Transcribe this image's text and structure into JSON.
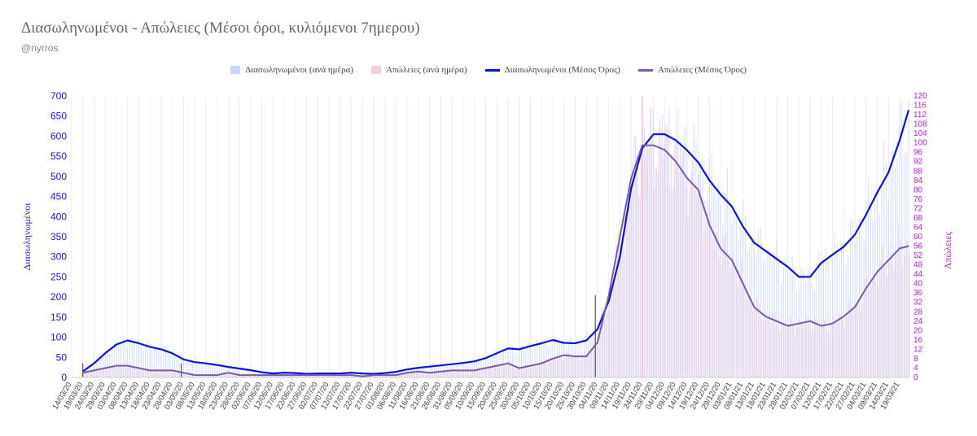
{
  "header": {
    "title": "Διασωληνωμένοι - Απώλειες (Μέσοι όροι, κυλιόμενοι 7ημερου)",
    "subtitle": "@nyrros"
  },
  "legend": [
    {
      "label": "Διασωληνωμένοι (ανά ημέρα)",
      "color": "#c9d7fa",
      "kind": "bar"
    },
    {
      "label": "Απώλειες (ανά ημέρα)",
      "color": "#f4cfe0",
      "kind": "bar"
    },
    {
      "label": "Διασωληνωμένοι (Μέσος Όρος)",
      "color": "#0a14e0",
      "kind": "line"
    },
    {
      "label": "Απώλειες (Μέσος Όρος)",
      "color": "#7a5aa8",
      "kind": "line"
    }
  ],
  "chart_data": {
    "type": "line",
    "title": "Διασωληνωμένοι - Απώλειες (Μέσοι όροι, κυλιόμενοι 7ημερου)",
    "ylabel": "Διασωληνωμένοι",
    "y2label": "Απώλειες",
    "ylim": [
      0,
      700
    ],
    "y2lim": [
      0,
      120
    ],
    "yticks": [
      0,
      50,
      100,
      150,
      200,
      250,
      300,
      350,
      400,
      450,
      500,
      550,
      600,
      650,
      700
    ],
    "y2ticks": [
      0,
      4,
      8,
      12,
      16,
      20,
      24,
      28,
      32,
      36,
      40,
      44,
      48,
      52,
      56,
      60,
      64,
      68,
      72,
      76,
      80,
      84,
      88,
      92,
      96,
      100,
      104,
      108,
      112,
      116,
      120
    ],
    "xticks": [
      "14/03/20",
      "19/03/20",
      "24/03/20",
      "29/03/20",
      "03/04/20",
      "08/04/20",
      "13/04/20",
      "18/04/20",
      "23/04/20",
      "28/04/20",
      "03/05/20",
      "08/05/20",
      "13/05/20",
      "18/05/20",
      "23/05/20",
      "28/05/20",
      "02/06/20",
      "07/06/20",
      "12/06/20",
      "17/06/20",
      "22/06/20",
      "27/06/20",
      "02/07/20",
      "07/07/20",
      "12/07/20",
      "17/07/20",
      "22/07/20",
      "27/07/20",
      "01/08/20",
      "06/08/20",
      "11/08/20",
      "16/08/20",
      "21/08/20",
      "26/08/20",
      "31/08/20",
      "05/09/20",
      "10/09/20",
      "15/09/20",
      "20/09/20",
      "25/09/20",
      "30/09/20",
      "05/10/20",
      "10/10/20",
      "15/10/20",
      "20/10/20",
      "25/10/20",
      "30/10/20",
      "04/11/20",
      "09/11/20",
      "14/11/20",
      "19/11/20",
      "24/11/20",
      "29/11/20",
      "04/12/20",
      "09/12/20",
      "14/12/20",
      "19/12/20",
      "24/12/20",
      "29/12/20",
      "03/01/21",
      "08/01/21",
      "13/01/21",
      "18/01/21",
      "23/01/21",
      "28/01/21",
      "02/02/21",
      "07/02/21",
      "12/02/21",
      "17/02/21",
      "22/02/21",
      "27/02/21",
      "04/03/21",
      "09/03/21",
      "14/03/21",
      "19/03/21"
    ],
    "x_start": "14/03/20",
    "x_end": "23/03/21",
    "grid": "vertical",
    "legend_position": "top",
    "series": [
      {
        "name": "Διασωληνωμένοι (Μέσος Όρος)",
        "axis": "left",
        "color": "#0a14e0",
        "points": [
          [
            "19/03/20",
            15
          ],
          [
            "24/03/20",
            35
          ],
          [
            "29/03/20",
            60
          ],
          [
            "03/04/20",
            82
          ],
          [
            "08/04/20",
            92
          ],
          [
            "13/04/20",
            85
          ],
          [
            "18/04/20",
            76
          ],
          [
            "23/04/20",
            70
          ],
          [
            "28/04/20",
            60
          ],
          [
            "03/05/20",
            45
          ],
          [
            "08/05/20",
            38
          ],
          [
            "13/05/20",
            35
          ],
          [
            "18/05/20",
            31
          ],
          [
            "23/05/20",
            26
          ],
          [
            "28/05/20",
            22
          ],
          [
            "02/06/20",
            18
          ],
          [
            "07/06/20",
            13
          ],
          [
            "12/06/20",
            10
          ],
          [
            "17/06/20",
            12
          ],
          [
            "22/06/20",
            11
          ],
          [
            "27/06/20",
            9
          ],
          [
            "02/07/20",
            10
          ],
          [
            "07/07/20",
            10
          ],
          [
            "12/07/20",
            10
          ],
          [
            "17/07/20",
            12
          ],
          [
            "22/07/20",
            10
          ],
          [
            "27/07/20",
            9
          ],
          [
            "01/08/20",
            11
          ],
          [
            "06/08/20",
            14
          ],
          [
            "11/08/20",
            20
          ],
          [
            "16/08/20",
            24
          ],
          [
            "21/08/20",
            27
          ],
          [
            "26/08/20",
            30
          ],
          [
            "31/08/20",
            33
          ],
          [
            "05/09/20",
            36
          ],
          [
            "10/09/20",
            40
          ],
          [
            "15/09/20",
            48
          ],
          [
            "20/09/20",
            60
          ],
          [
            "25/09/20",
            72
          ],
          [
            "30/09/20",
            70
          ],
          [
            "05/10/20",
            78
          ],
          [
            "10/10/20",
            85
          ],
          [
            "15/10/20",
            93
          ],
          [
            "20/10/20",
            86
          ],
          [
            "25/10/20",
            85
          ],
          [
            "30/10/20",
            92
          ],
          [
            "04/11/20",
            120
          ],
          [
            "09/11/20",
            190
          ],
          [
            "14/11/20",
            300
          ],
          [
            "19/11/20",
            470
          ],
          [
            "24/11/20",
            570
          ],
          [
            "29/11/20",
            605
          ],
          [
            "04/12/20",
            605
          ],
          [
            "09/12/20",
            590
          ],
          [
            "14/12/20",
            565
          ],
          [
            "19/12/20",
            535
          ],
          [
            "24/12/20",
            490
          ],
          [
            "29/12/20",
            455
          ],
          [
            "03/01/21",
            425
          ],
          [
            "08/01/21",
            375
          ],
          [
            "13/01/21",
            335
          ],
          [
            "18/01/21",
            315
          ],
          [
            "23/01/21",
            295
          ],
          [
            "28/01/21",
            275
          ],
          [
            "02/02/21",
            250
          ],
          [
            "07/02/21",
            250
          ],
          [
            "12/02/21",
            285
          ],
          [
            "17/02/21",
            305
          ],
          [
            "22/02/21",
            325
          ],
          [
            "27/02/21",
            355
          ],
          [
            "04/03/21",
            405
          ],
          [
            "09/03/21",
            460
          ],
          [
            "14/03/21",
            510
          ],
          [
            "19/03/21",
            590
          ],
          [
            "23/03/21",
            665
          ]
        ]
      },
      {
        "name": "Απώλειες (Μέσος Όρος)",
        "axis": "right",
        "color": "#7a5aa8",
        "points": [
          [
            "19/03/20",
            2
          ],
          [
            "24/03/20",
            3
          ],
          [
            "29/03/20",
            4
          ],
          [
            "03/04/20",
            5
          ],
          [
            "08/04/20",
            5
          ],
          [
            "13/04/20",
            4
          ],
          [
            "18/04/20",
            3
          ],
          [
            "23/04/20",
            3
          ],
          [
            "28/04/20",
            3
          ],
          [
            "03/05/20",
            2
          ],
          [
            "08/05/20",
            1
          ],
          [
            "13/05/20",
            1
          ],
          [
            "18/05/20",
            1
          ],
          [
            "23/05/20",
            2
          ],
          [
            "28/05/20",
            1
          ],
          [
            "02/06/20",
            1
          ],
          [
            "07/06/20",
            1
          ],
          [
            "12/06/20",
            1
          ],
          [
            "17/06/20",
            1
          ],
          [
            "22/06/20",
            1
          ],
          [
            "27/06/20",
            1
          ],
          [
            "02/07/20",
            1
          ],
          [
            "07/07/20",
            1
          ],
          [
            "12/07/20",
            1
          ],
          [
            "17/07/20",
            1
          ],
          [
            "22/07/20",
            0.5
          ],
          [
            "27/07/20",
            1
          ],
          [
            "01/08/20",
            1
          ],
          [
            "06/08/20",
            1
          ],
          [
            "11/08/20",
            2
          ],
          [
            "16/08/20",
            2.5
          ],
          [
            "21/08/20",
            2
          ],
          [
            "26/08/20",
            2.5
          ],
          [
            "31/08/20",
            3
          ],
          [
            "05/09/20",
            3
          ],
          [
            "10/09/20",
            3
          ],
          [
            "15/09/20",
            4
          ],
          [
            "20/09/20",
            5
          ],
          [
            "25/09/20",
            6
          ],
          [
            "30/09/20",
            4
          ],
          [
            "05/10/20",
            5
          ],
          [
            "10/10/20",
            6
          ],
          [
            "15/10/20",
            8
          ],
          [
            "20/10/20",
            9.5
          ],
          [
            "25/10/20",
            9
          ],
          [
            "30/10/20",
            9
          ],
          [
            "04/11/20",
            15
          ],
          [
            "09/11/20",
            35
          ],
          [
            "14/11/20",
            60
          ],
          [
            "19/11/20",
            85
          ],
          [
            "24/11/20",
            99
          ],
          [
            "29/11/20",
            99
          ],
          [
            "04/12/20",
            97
          ],
          [
            "09/12/20",
            92
          ],
          [
            "14/12/20",
            85
          ],
          [
            "19/12/20",
            80
          ],
          [
            "24/12/20",
            65
          ],
          [
            "29/12/20",
            55
          ],
          [
            "03/01/21",
            50
          ],
          [
            "08/01/21",
            40
          ],
          [
            "13/01/21",
            30
          ],
          [
            "18/01/21",
            26
          ],
          [
            "23/01/21",
            24
          ],
          [
            "28/01/21",
            22
          ],
          [
            "02/02/21",
            23
          ],
          [
            "07/02/21",
            24
          ],
          [
            "12/02/21",
            22
          ],
          [
            "17/02/21",
            23
          ],
          [
            "22/02/21",
            26
          ],
          [
            "27/02/21",
            30
          ],
          [
            "04/03/21",
            38
          ],
          [
            "09/03/21",
            45
          ],
          [
            "14/03/21",
            50
          ],
          [
            "19/03/21",
            55
          ],
          [
            "23/03/21",
            56
          ]
        ]
      }
    ],
    "spikes": [
      {
        "date": "19/03/20",
        "value": 35,
        "axis": "left"
      },
      {
        "date": "02/05/20",
        "value": 34,
        "axis": "left"
      },
      {
        "date": "03/11/20",
        "value": 205,
        "axis": "left"
      },
      {
        "date": "24/11/20",
        "value": 120,
        "axis": "right"
      }
    ],
    "daily_bars": [
      {
        "series": "Διασωληνωμένοι (ανά ημέρα)",
        "axis": "left",
        "color": "#c9d7fa",
        "follows": "Διασωληνωμένοι (Μέσος Όρος)"
      },
      {
        "series": "Απώλειες (ανά ημέρα)",
        "axis": "right",
        "color": "#f4cfe0",
        "follows": "Απώλειες (Μέσος Όρος)"
      }
    ]
  }
}
